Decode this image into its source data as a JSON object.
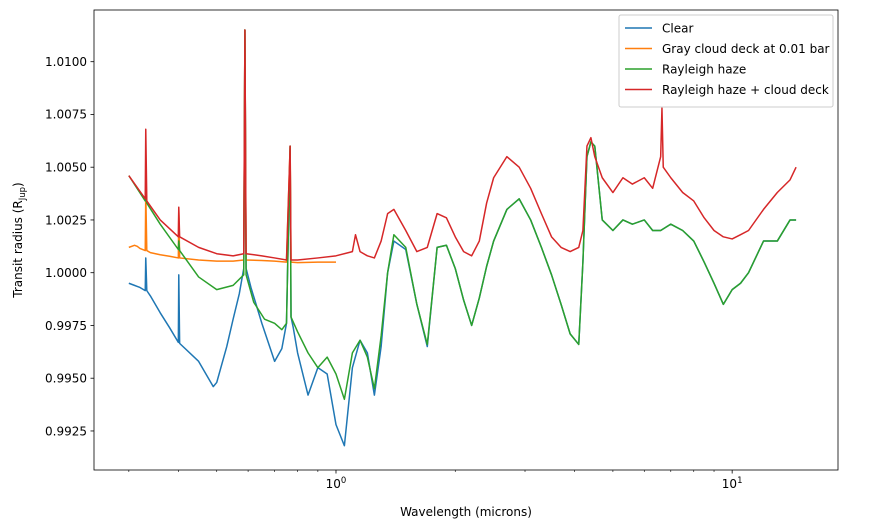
{
  "chart_data": {
    "type": "line",
    "xlabel": "Wavelength (microns)",
    "ylabel_main": "Transit radius (R",
    "ylabel_sub": "Jup",
    "ylabel_end": ")",
    "x_scale": "log",
    "xlim": [
      0.245,
      18.5
    ],
    "ylim": [
      0.99065,
      1.01245
    ],
    "x_ticks": [
      {
        "value": 1,
        "base": "10",
        "exp": "0"
      },
      {
        "value": 10,
        "base": "10",
        "exp": "1"
      }
    ],
    "y_ticks": [
      {
        "value": 0.9925,
        "label": "0.9925"
      },
      {
        "value": 0.995,
        "label": "0.9950"
      },
      {
        "value": 0.9975,
        "label": "0.9975"
      },
      {
        "value": 1.0,
        "label": "1.0000"
      },
      {
        "value": 1.0025,
        "label": "1.0025"
      },
      {
        "value": 1.005,
        "label": "1.0050"
      },
      {
        "value": 1.0075,
        "label": "1.0075"
      },
      {
        "value": 1.01,
        "label": "1.0100"
      }
    ],
    "grid": false,
    "legend_position": "top-right",
    "series": [
      {
        "name": "Clear",
        "color": "#1f77b4",
        "x": [
          0.3,
          0.31,
          0.315,
          0.32,
          0.33,
          0.331,
          0.333,
          0.34,
          0.36,
          0.38,
          0.4,
          0.401,
          0.403,
          0.45,
          0.49,
          0.5,
          0.53,
          0.55,
          0.57,
          0.585,
          0.589,
          0.593,
          0.61,
          0.65,
          0.7,
          0.73,
          0.75,
          0.766,
          0.77,
          0.78,
          0.8,
          0.85,
          0.9,
          0.95,
          1.0,
          1.05,
          1.1,
          1.15,
          1.2,
          1.25,
          1.3,
          1.35,
          1.4,
          1.5,
          1.6,
          1.7,
          1.8,
          1.9,
          2.0,
          2.1,
          2.2,
          2.3,
          2.4,
          2.5,
          2.7,
          2.9,
          3.1,
          3.3,
          3.5,
          3.7,
          3.9,
          4.1,
          4.2,
          4.3,
          4.4,
          4.5,
          4.7,
          5.0,
          5.3,
          5.6,
          6.0,
          6.3,
          6.6,
          7.0,
          7.5,
          8.0,
          8.5,
          9.0,
          9.5,
          10,
          10.5,
          11,
          12,
          13,
          14,
          14.5
        ],
        "y": [
          0.9995,
          0.9994,
          0.99935,
          0.9993,
          0.99915,
          1.0007,
          0.99915,
          0.9989,
          0.9981,
          0.9974,
          0.9967,
          0.9999,
          0.99665,
          0.9958,
          0.9946,
          0.9948,
          0.9965,
          0.9978,
          0.999,
          1.0002,
          1.0115,
          1.0002,
          0.9993,
          0.9976,
          0.9958,
          0.9964,
          0.9976,
          1.006,
          0.9979,
          0.9974,
          0.9962,
          0.9942,
          0.9955,
          0.9952,
          0.9928,
          0.9918,
          0.9955,
          0.9968,
          0.9962,
          0.9942,
          0.9965,
          1.0,
          1.0015,
          1.0011,
          0.9985,
          0.9965,
          1.0012,
          1.0013,
          1.0002,
          0.9987,
          0.9975,
          0.9988,
          1.0003,
          1.0015,
          1.003,
          1.0035,
          1.0025,
          1.0012,
          0.9999,
          0.9985,
          0.9971,
          0.9966,
          1.0005,
          1.0055,
          1.0062,
          1.006,
          1.0025,
          1.002,
          1.0025,
          1.0023,
          1.0025,
          1.002,
          1.002,
          1.0023,
          1.002,
          1.0015,
          1.0005,
          0.9995,
          0.9985,
          0.9992,
          0.9995,
          1.0,
          1.0015,
          1.0015,
          1.0025,
          1.0025
        ]
      },
      {
        "name": "Gray cloud deck at 0.01 bar",
        "color": "#ff7f0e",
        "x": [
          0.3,
          0.31,
          0.315,
          0.32,
          0.33,
          0.331,
          0.333,
          0.34,
          0.36,
          0.38,
          0.4,
          0.401,
          0.403,
          0.45,
          0.5,
          0.55,
          0.585,
          0.589,
          0.593,
          0.65,
          0.7,
          0.75,
          0.766,
          0.77,
          0.8,
          0.9,
          1.0
        ],
        "y": [
          1.0012,
          1.0013,
          1.00125,
          1.00115,
          1.00105,
          1.0038,
          1.00105,
          1.00095,
          1.00085,
          1.00078,
          1.0007,
          1.003,
          1.0007,
          1.0006,
          1.00055,
          1.00055,
          1.0006,
          1.0115,
          1.0006,
          1.00058,
          1.00055,
          1.0005,
          1.006,
          1.0005,
          1.00048,
          1.0005,
          1.0005
        ]
      },
      {
        "name": "Rayleigh haze",
        "color": "#2ca02c",
        "x": [
          0.3,
          0.33,
          0.331,
          0.333,
          0.36,
          0.4,
          0.401,
          0.403,
          0.45,
          0.5,
          0.55,
          0.585,
          0.589,
          0.593,
          0.62,
          0.66,
          0.7,
          0.73,
          0.75,
          0.766,
          0.77,
          0.8,
          0.85,
          0.9,
          0.95,
          1.0,
          1.05,
          1.1,
          1.15,
          1.2,
          1.25,
          1.3,
          1.35,
          1.4,
          1.5,
          1.6,
          1.7,
          1.8,
          1.9,
          2.0,
          2.1,
          2.2,
          2.3,
          2.4,
          2.5,
          2.7,
          2.9,
          3.1,
          3.3,
          3.5,
          3.7,
          3.9,
          4.1,
          4.2,
          4.3,
          4.4,
          4.5,
          4.7,
          5.0,
          5.3,
          5.6,
          6.0,
          6.3,
          6.6,
          7.0,
          7.5,
          8.0,
          8.5,
          9.0,
          9.5,
          10,
          10.5,
          11,
          12,
          13,
          14,
          14.5
        ],
        "y": [
          1.0046,
          1.0034,
          1.004,
          1.0033,
          1.0023,
          1.0011,
          1.0015,
          1.00105,
          0.9998,
          0.9992,
          0.9994,
          0.9999,
          1.0115,
          0.9999,
          0.9986,
          0.9978,
          0.9976,
          0.9973,
          0.9976,
          1.006,
          0.9979,
          0.9972,
          0.9962,
          0.9955,
          0.996,
          0.9952,
          0.994,
          0.9962,
          0.9968,
          0.996,
          0.9945,
          0.997,
          1.0,
          1.0018,
          1.0012,
          0.9985,
          0.9966,
          1.0012,
          1.0013,
          1.0002,
          0.9987,
          0.9975,
          0.9988,
          1.0003,
          1.0015,
          1.003,
          1.0035,
          1.0025,
          1.0012,
          0.9999,
          0.9985,
          0.9971,
          0.9966,
          1.0005,
          1.0055,
          1.0062,
          1.006,
          1.0025,
          1.002,
          1.0025,
          1.0023,
          1.0025,
          1.002,
          1.002,
          1.0023,
          1.002,
          1.0015,
          1.0005,
          0.9995,
          0.9985,
          0.9992,
          0.9995,
          1.0,
          1.0015,
          1.0015,
          1.0025,
          1.0025
        ]
      },
      {
        "name": "Rayleigh haze + cloud deck",
        "color": "#d62728",
        "x": [
          0.3,
          0.33,
          0.331,
          0.333,
          0.36,
          0.4,
          0.401,
          0.403,
          0.45,
          0.5,
          0.55,
          0.585,
          0.589,
          0.593,
          0.65,
          0.7,
          0.75,
          0.766,
          0.77,
          0.8,
          0.9,
          1.0,
          1.1,
          1.12,
          1.15,
          1.2,
          1.25,
          1.3,
          1.35,
          1.4,
          1.5,
          1.6,
          1.7,
          1.8,
          1.9,
          2.0,
          2.1,
          2.2,
          2.3,
          2.4,
          2.5,
          2.7,
          2.9,
          3.1,
          3.3,
          3.5,
          3.7,
          3.9,
          4.1,
          4.2,
          4.3,
          4.4,
          4.5,
          4.7,
          5.0,
          5.3,
          5.6,
          6.0,
          6.3,
          6.6,
          6.65,
          6.7,
          7.0,
          7.5,
          8.0,
          8.5,
          9.0,
          9.5,
          10,
          10.5,
          11,
          12,
          13,
          14,
          14.5
        ],
        "y": [
          1.0046,
          1.0035,
          1.0068,
          1.0034,
          1.0025,
          1.0017,
          1.0031,
          1.0017,
          1.0012,
          1.0009,
          1.0008,
          1.0009,
          1.0115,
          1.0009,
          1.0008,
          1.0007,
          1.0006,
          1.006,
          1.0006,
          1.0006,
          1.0007,
          1.0008,
          1.001,
          1.0018,
          1.001,
          1.0008,
          1.0007,
          1.0015,
          1.0028,
          1.003,
          1.002,
          1.001,
          1.0012,
          1.0028,
          1.0026,
          1.0017,
          1.001,
          1.0008,
          1.0015,
          1.0033,
          1.0045,
          1.0055,
          1.005,
          1.004,
          1.0028,
          1.0017,
          1.0012,
          1.001,
          1.0012,
          1.002,
          1.006,
          1.0064,
          1.0055,
          1.0045,
          1.0038,
          1.0045,
          1.0042,
          1.0045,
          1.004,
          1.0055,
          1.0078,
          1.005,
          1.0045,
          1.0038,
          1.0034,
          1.0026,
          1.002,
          1.0017,
          1.0016,
          1.0018,
          1.002,
          1.003,
          1.0038,
          1.0044,
          1.005
        ]
      }
    ]
  }
}
